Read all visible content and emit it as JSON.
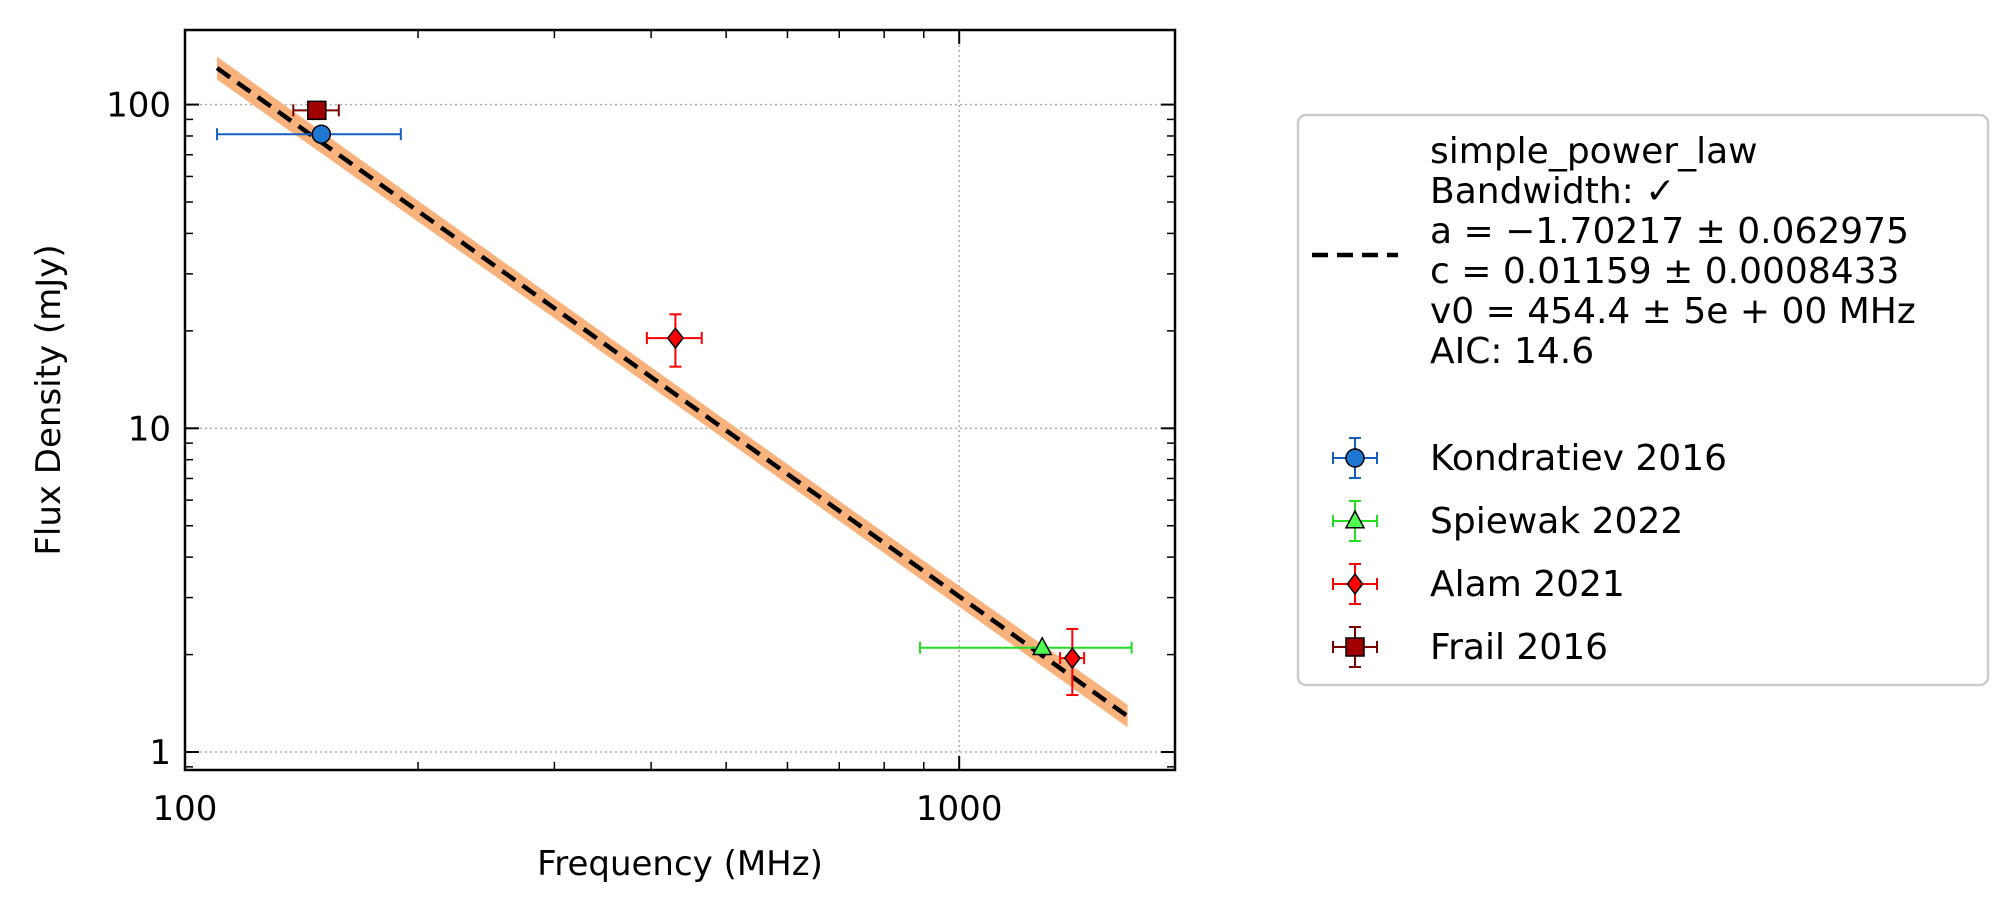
{
  "chart_data": {
    "type": "scatter",
    "xlabel": "Frequency (MHz)",
    "ylabel": "Flux Density (mJy)",
    "xscale": "log",
    "yscale": "log",
    "xlim": [
      100,
      1900
    ],
    "ylim": [
      0.88,
      170
    ],
    "x_ticks": [
      100,
      1000
    ],
    "x_tick_labels": [
      "100",
      "1000"
    ],
    "y_ticks": [
      1,
      10,
      100
    ],
    "y_tick_labels": [
      "1",
      "10",
      "100"
    ],
    "grid": true,
    "legend_position": "right, outside plot",
    "fit": {
      "model": "simple_power_law",
      "legend_lines": [
        "simple_power_law",
        "Bandwidth: ✓",
        "a = −1.70217 ± 0.062975",
        "c = 0.01159 ± 0.0008433",
        "v0 = 454.4 ± 5e + 00 MHz",
        "AIC: 14.6"
      ],
      "a": -1.70217,
      "a_err": 0.062975,
      "c": 0.01159,
      "c_err": 0.0008433,
      "v0": 454.4,
      "x_range": [
        110,
        1650
      ],
      "line_color": "#000000",
      "band_color": "#f9b27c"
    },
    "series": [
      {
        "name": "Kondratiev 2016",
        "marker": "circle",
        "color": "#1f77d4",
        "edge_color": "#1560bd",
        "points": [
          {
            "x": 150,
            "y": 81,
            "xerr_low": 40,
            "xerr_high": 40,
            "yerr_low": 0,
            "yerr_high": 0
          }
        ]
      },
      {
        "name": "Spiewak 2022",
        "marker": "triangle",
        "color": "#50ff50",
        "edge_color": "#22dd22",
        "points": [
          {
            "x": 1280,
            "y": 2.1,
            "xerr_low": 390,
            "xerr_high": 390,
            "yerr_low": 0,
            "yerr_high": 0
          }
        ]
      },
      {
        "name": "Alam 2021",
        "marker": "diamond",
        "color": "#ff0000",
        "edge_color": "#ff0000",
        "points": [
          {
            "x": 430,
            "y": 19,
            "xerr_low": 35,
            "xerr_high": 35,
            "yerr_low": 3.5,
            "yerr_high": 3.5
          },
          {
            "x": 1400,
            "y": 1.95,
            "xerr_low": 50,
            "xerr_high": 50,
            "yerr_low": 0.45,
            "yerr_high": 0.45
          }
        ]
      },
      {
        "name": "Frail 2016",
        "marker": "square",
        "color": "#a00000",
        "edge_color": "#7a0000",
        "points": [
          {
            "x": 148,
            "y": 96,
            "xerr_low": 10,
            "xerr_high": 10,
            "yerr_low": 0,
            "yerr_high": 0
          }
        ]
      }
    ]
  }
}
